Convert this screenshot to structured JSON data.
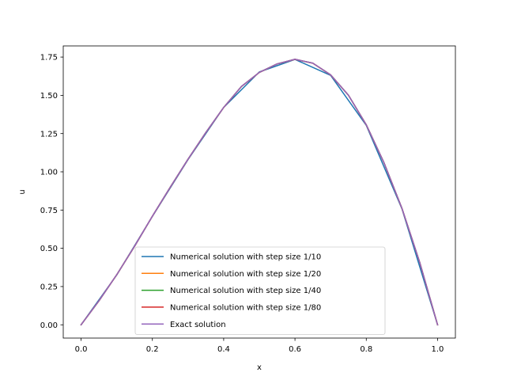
{
  "chart_data": {
    "type": "line",
    "title": "",
    "xlabel": "x",
    "ylabel": "u",
    "xlim": [
      -0.05,
      1.05
    ],
    "ylim": [
      -0.0868,
      1.8229
    ],
    "grid": false,
    "legend_placement": "lower-center",
    "x_ticks": [
      0.0,
      0.2,
      0.4,
      0.6,
      0.8,
      1.0
    ],
    "x_tick_labels": [
      "0.0",
      "0.2",
      "0.4",
      "0.6",
      "0.8",
      "1.0"
    ],
    "y_ticks": [
      0.0,
      0.25,
      0.5,
      0.75,
      1.0,
      1.25,
      1.5,
      1.75
    ],
    "y_tick_labels": [
      "0.00",
      "0.25",
      "0.50",
      "0.75",
      "1.00",
      "1.25",
      "1.50",
      "1.75"
    ],
    "series": [
      {
        "name": "Numerical solution with step size 1/10",
        "color": "#1f77b4",
        "x": [
          0.0,
          0.1,
          0.2,
          0.3,
          0.4,
          0.5,
          0.6,
          0.7,
          0.8,
          0.9,
          1.0
        ],
        "y": [
          0.0,
          0.3255,
          0.7086,
          1.0799,
          1.4209,
          1.6528,
          1.7348,
          1.6305,
          1.3035,
          0.7585,
          0.0
        ]
      },
      {
        "name": "Numerical solution with step size 1/20",
        "color": "#ff7f0e",
        "x": [
          0.0,
          0.05,
          0.1,
          0.15,
          0.2,
          0.25,
          0.3,
          0.35,
          0.4,
          0.45,
          0.5,
          0.55,
          0.6,
          0.65,
          0.7,
          0.75,
          0.8,
          0.85,
          0.9,
          0.95,
          1.0
        ],
        "y": [
          0.0,
          0.1557,
          0.3269,
          0.5126,
          0.7094,
          0.8988,
          1.0821,
          1.2568,
          1.4204,
          1.5577,
          1.6493,
          1.7051,
          1.735,
          1.7098,
          1.6336,
          1.5002,
          1.3069,
          1.0573,
          0.7613,
          0.4071,
          0.0
        ]
      },
      {
        "name": "Numerical solution with step size 1/40",
        "color": "#2ca02c",
        "x": [
          0.0,
          0.05,
          0.1,
          0.15,
          0.2,
          0.25,
          0.3,
          0.35,
          0.4,
          0.45,
          0.5,
          0.55,
          0.6,
          0.65,
          0.7,
          0.75,
          0.8,
          0.85,
          0.9,
          0.95,
          1.0
        ],
        "y": [
          0.0,
          0.1561,
          0.3273,
          0.5131,
          0.7098,
          0.8992,
          1.0825,
          1.2572,
          1.4208,
          1.5581,
          1.6497,
          1.7055,
          1.7354,
          1.7102,
          1.634,
          1.5006,
          1.3073,
          1.0577,
          0.7617,
          0.4075,
          0.0
        ]
      },
      {
        "name": "Numerical solution with step size 1/80",
        "color": "#d62728",
        "x": [
          0.0,
          0.05,
          0.1,
          0.15,
          0.2,
          0.25,
          0.3,
          0.35,
          0.4,
          0.45,
          0.5,
          0.55,
          0.6,
          0.65,
          0.7,
          0.75,
          0.8,
          0.85,
          0.9,
          0.95,
          1.0
        ],
        "y": [
          0.0,
          0.1562,
          0.3274,
          0.5132,
          0.7099,
          0.8993,
          1.0826,
          1.2573,
          1.4209,
          1.5582,
          1.6498,
          1.7056,
          1.7355,
          1.7103,
          1.6341,
          1.5007,
          1.3074,
          1.0578,
          0.7618,
          0.4076,
          0.0
        ]
      },
      {
        "name": "Exact solution",
        "color": "#9467bd",
        "x": [
          0.0,
          0.05,
          0.1,
          0.15,
          0.2,
          0.25,
          0.3,
          0.35,
          0.4,
          0.45,
          0.5,
          0.55,
          0.6,
          0.65,
          0.7,
          0.75,
          0.8,
          0.85,
          0.9,
          0.95,
          1.0
        ],
        "y": [
          0.0,
          0.1562,
          0.3274,
          0.5132,
          0.7099,
          0.8993,
          1.0826,
          1.2573,
          1.4209,
          1.5582,
          1.6498,
          1.7056,
          1.7355,
          1.7103,
          1.6341,
          1.5007,
          1.3074,
          1.0578,
          0.7618,
          0.4076,
          0.0
        ]
      }
    ]
  }
}
